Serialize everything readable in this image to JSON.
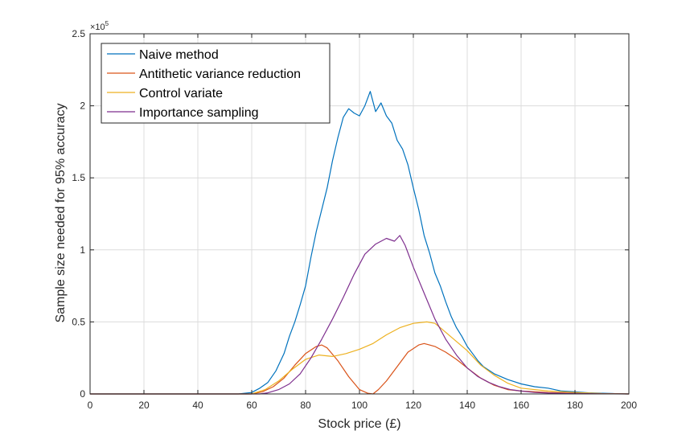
{
  "chart_data": {
    "type": "line",
    "xlabel": "Stock price (£)",
    "ylabel": "Sample size needed for 95% accuracy",
    "y_exponent_label": "×10",
    "y_exponent_power": "5",
    "xlim": [
      0,
      200
    ],
    "ylim": [
      0,
      250000
    ],
    "xticks": [
      0,
      20,
      40,
      60,
      80,
      100,
      120,
      140,
      160,
      180,
      200
    ],
    "xtick_labels": [
      "0",
      "20",
      "40",
      "60",
      "80",
      "100",
      "120",
      "140",
      "160",
      "180",
      "200"
    ],
    "yticks": [
      0,
      50000,
      100000,
      150000,
      200000,
      250000
    ],
    "ytick_labels": [
      "0",
      "0.5",
      "1",
      "1.5",
      "2",
      "2.5"
    ],
    "grid": true,
    "legend_position": "top-left",
    "series": [
      {
        "name": "Naive method",
        "color": "#0072BD",
        "x": [
          0,
          55,
          60,
          63,
          66,
          69,
          72,
          74,
          76,
          78,
          80,
          82,
          84,
          86,
          88,
          90,
          92,
          94,
          96,
          98,
          100,
          102,
          104,
          106,
          108,
          110,
          112,
          114,
          116,
          118,
          120,
          122,
          124,
          126,
          128,
          130,
          132,
          134,
          136,
          138,
          140,
          142,
          144,
          146,
          150,
          155,
          160,
          165,
          170,
          175,
          180,
          185,
          190,
          195,
          200
        ],
        "y": [
          0,
          0,
          1000,
          4000,
          8000,
          16000,
          28000,
          40000,
          50000,
          62000,
          75000,
          95000,
          113000,
          128000,
          143000,
          162000,
          178000,
          192000,
          198000,
          195000,
          193000,
          200000,
          210000,
          196000,
          202000,
          193000,
          188000,
          176000,
          170000,
          159000,
          143000,
          128000,
          110000,
          98000,
          84000,
          75000,
          64000,
          54000,
          46000,
          40000,
          33000,
          28000,
          23000,
          19000,
          14000,
          10000,
          7000,
          5000,
          4000,
          2000,
          1500,
          800,
          500,
          200,
          0
        ]
      },
      {
        "name": "Antithetic variance reduction",
        "color": "#D95319",
        "x": [
          0,
          60,
          64,
          68,
          72,
          76,
          80,
          84,
          86,
          88,
          92,
          96,
          100,
          103,
          105,
          107,
          110,
          114,
          118,
          122,
          124,
          126,
          128,
          132,
          136,
          140,
          145,
          150,
          155,
          160,
          170,
          180,
          190,
          200
        ],
        "y": [
          0,
          0,
          1500,
          5000,
          11000,
          20000,
          28000,
          33000,
          34000,
          32000,
          23000,
          12000,
          3000,
          500,
          0,
          3000,
          9000,
          19000,
          29000,
          34000,
          35000,
          34000,
          33000,
          29000,
          24000,
          18000,
          11000,
          6000,
          3000,
          2000,
          1000,
          500,
          200,
          0
        ]
      },
      {
        "name": "Control variate",
        "color": "#EDB120",
        "x": [
          0,
          60,
          65,
          70,
          75,
          80,
          85,
          90,
          95,
          100,
          105,
          110,
          115,
          120,
          125,
          128,
          130,
          135,
          140,
          145,
          150,
          155,
          160,
          170,
          180,
          190,
          200
        ],
        "y": [
          0,
          0,
          3000,
          9000,
          17000,
          24000,
          27000,
          26000,
          28000,
          31000,
          35000,
          41000,
          46000,
          49000,
          50000,
          49000,
          46000,
          38000,
          30000,
          20000,
          13000,
          7500,
          4000,
          2000,
          1000,
          300,
          0
        ]
      },
      {
        "name": "Importance sampling",
        "color": "#7E2F8E",
        "x": [
          0,
          63,
          66,
          70,
          74,
          78,
          82,
          86,
          90,
          94,
          98,
          102,
          106,
          110,
          113,
          115,
          117,
          120,
          124,
          128,
          132,
          136,
          140,
          144,
          148,
          152,
          156,
          160,
          165,
          170,
          180,
          190,
          200
        ],
        "y": [
          0,
          0,
          800,
          3000,
          7000,
          14000,
          25000,
          38000,
          52000,
          67000,
          83000,
          97000,
          104000,
          108000,
          106000,
          110000,
          103000,
          88000,
          70000,
          52000,
          38000,
          27000,
          18000,
          12000,
          8000,
          5000,
          3000,
          2000,
          1000,
          600,
          300,
          100,
          0
        ]
      }
    ]
  }
}
